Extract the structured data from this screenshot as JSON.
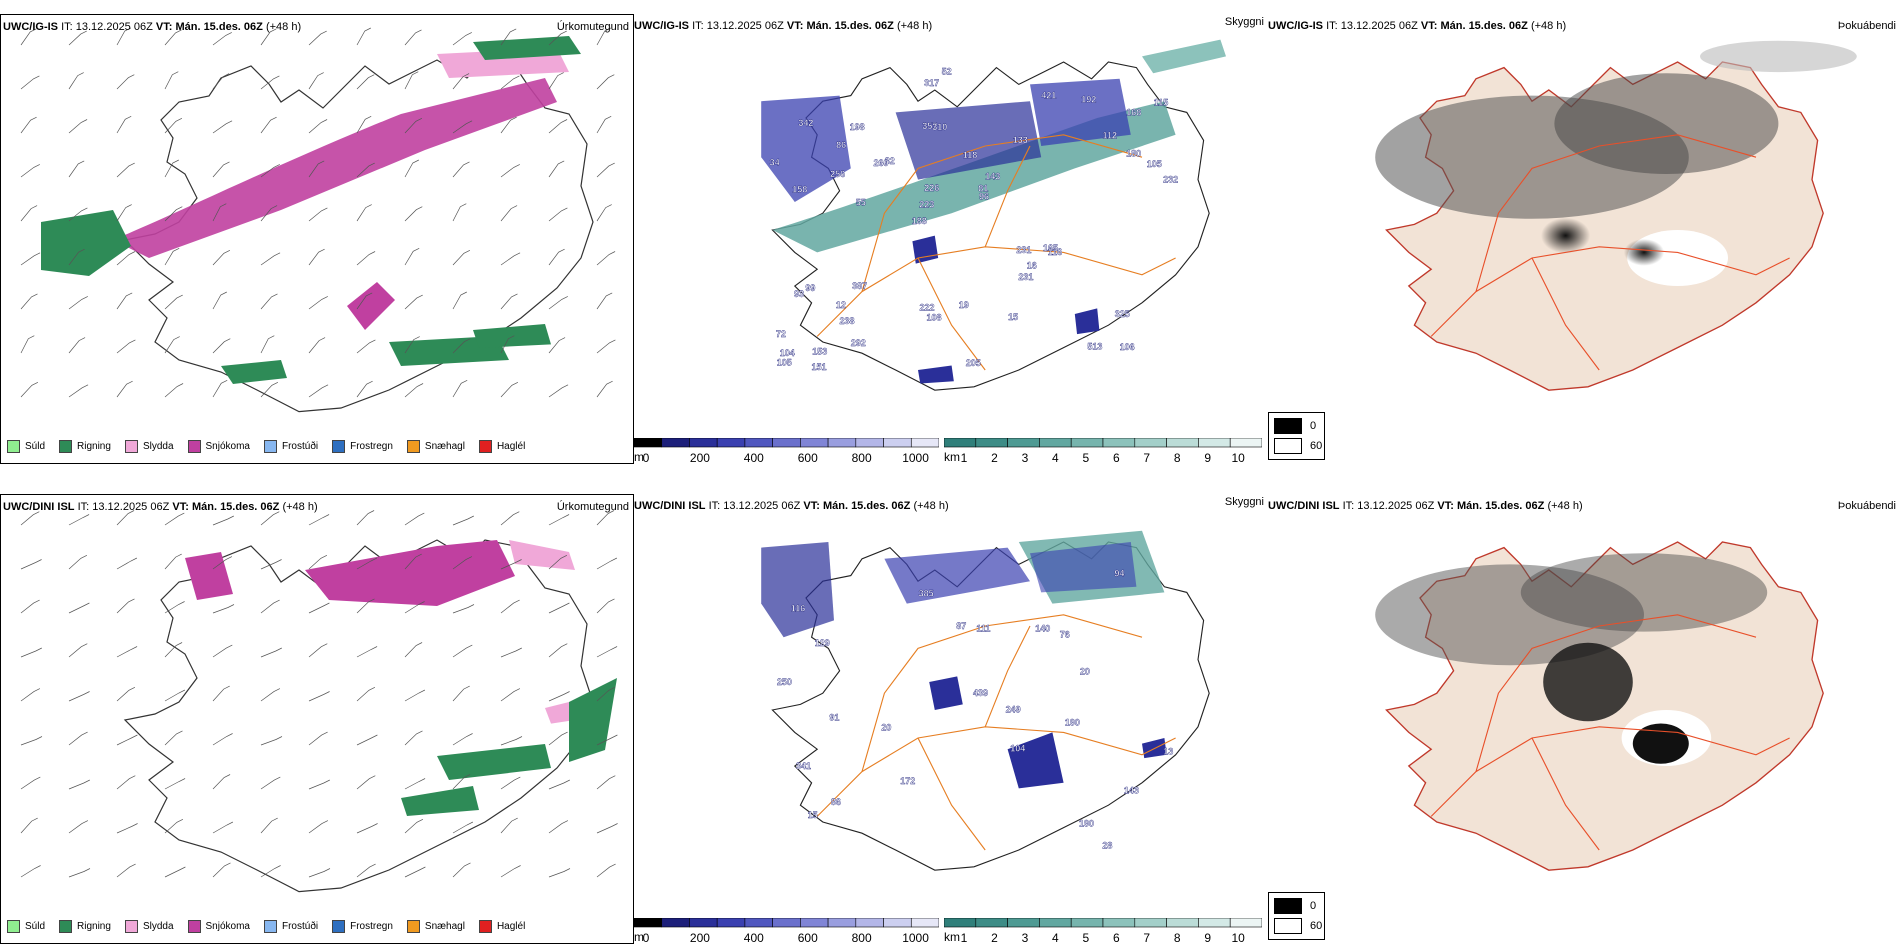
{
  "rows": [
    {
      "model_label": "UWC/IG-IS",
      "it_label": "IT:",
      "it_value": "13.12.2025 06Z",
      "vt_label": "VT:",
      "vt_value": "Mán. 15.des. 06Z",
      "lead": "(+48 h)",
      "cloud_labels": [
        "106",
        "158",
        "168",
        "188",
        "133",
        "153",
        "357",
        "118",
        "99",
        "82",
        "72",
        "238",
        "310",
        "143",
        "116",
        "342",
        "317",
        "232",
        "231",
        "180",
        "223",
        "222",
        "226",
        "198",
        "421",
        "387",
        "513",
        "325",
        "165",
        "205",
        "260",
        "256",
        "231",
        "292",
        "105",
        "81",
        "104",
        "108",
        "96",
        "93",
        "112",
        "115",
        "16",
        "15",
        "12",
        "151",
        "105",
        "19",
        "192",
        "52",
        "55",
        "34",
        "86"
      ]
    },
    {
      "model_label": "UWC/DINI ISL",
      "it_label": "IT:",
      "it_value": "13.12.2025 06Z",
      "vt_label": "VT:",
      "vt_value": "Mán. 15.des. 06Z",
      "lead": "(+48 h)",
      "cloud_labels": [
        "28",
        "91",
        "104",
        "116",
        "143",
        "129",
        "86",
        "20",
        "76",
        "87",
        "140",
        "190",
        "172",
        "385",
        "249",
        "341",
        "190",
        "439",
        "250",
        "15",
        "94",
        "111",
        "20",
        "13"
      ]
    }
  ],
  "panel_titles": {
    "precip": "Úrkomutegund",
    "cloud": "Skyggni",
    "fog": "Þokuábendi"
  },
  "precip_legend": [
    {
      "label": "Súld",
      "color": "#90ee90"
    },
    {
      "label": "Rigning",
      "color": "#2e8b57"
    },
    {
      "label": "Slydda",
      "color": "#f0a8d8"
    },
    {
      "label": "Snjókoma",
      "color": "#c040a0"
    },
    {
      "label": "Frostúði",
      "color": "#87b7f0"
    },
    {
      "label": "Frostregn",
      "color": "#2e6fc0"
    },
    {
      "label": "Snæhagl",
      "color": "#f09a20"
    },
    {
      "label": "Haglél",
      "color": "#e02020"
    }
  ],
  "cloudbase_scale": {
    "unit": "m",
    "ticks": [
      "0",
      "200",
      "400",
      "600",
      "800",
      "1000"
    ],
    "colors": [
      "#000000",
      "#1c1f7a",
      "#2a2f99",
      "#3a40b0",
      "#5057bf",
      "#6a70cc",
      "#8085d6",
      "#999edf",
      "#b3b6e8",
      "#cccff0",
      "#e6e7f7"
    ]
  },
  "visibility_scale": {
    "unit": "km",
    "ticks": [
      "1",
      "2",
      "3",
      "4",
      "5",
      "6",
      "7",
      "8",
      "9",
      "10"
    ],
    "colors": [
      "#2f7f7a",
      "#3d8c86",
      "#4e9a93",
      "#61a7a0",
      "#76b4ad",
      "#8cc2bb",
      "#a3cfc9",
      "#bbdcd7",
      "#d3e9e6",
      "#ecf5f4"
    ]
  },
  "fog_scale": {
    "items": [
      {
        "label": "0",
        "color": "#000000"
      },
      {
        "label": "60",
        "color": "#ffffff"
      }
    ]
  },
  "colors": {
    "snow": "#c040a0",
    "rain": "#2e8b57",
    "sleet": "#f0a8d8",
    "roads": "#e67e22",
    "fog_land": "#f2e3d6",
    "fog_roads": "#e8502a"
  }
}
